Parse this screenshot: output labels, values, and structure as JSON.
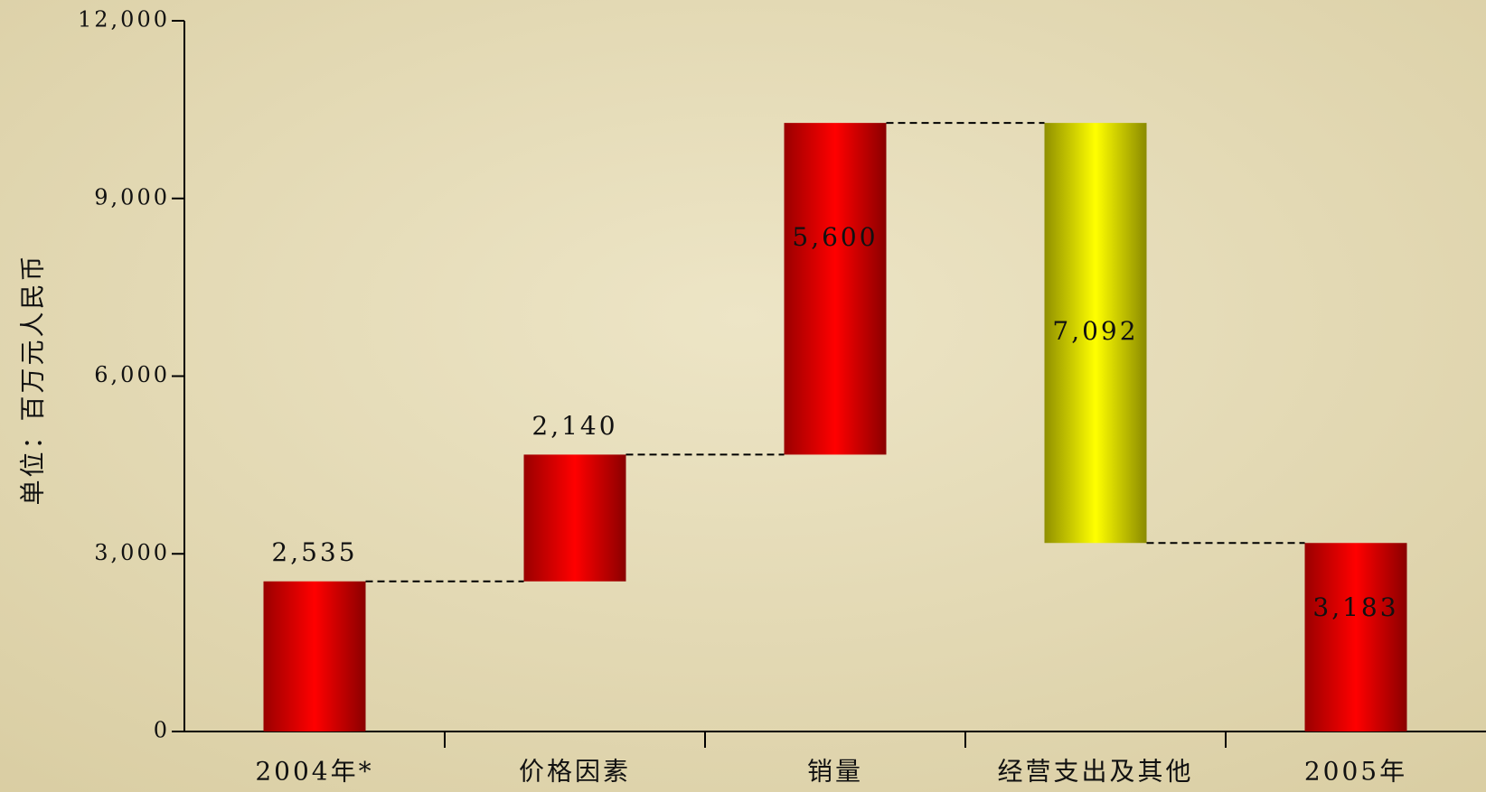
{
  "chart_data": {
    "type": "waterfall",
    "y_label": "单位：百万元人民币",
    "categories": [
      "2004年*",
      "价格因素",
      "销量",
      "经营支出及其他",
      "2005年"
    ],
    "measures": [
      "absolute",
      "relative",
      "relative",
      "relative",
      "total"
    ],
    "values": [
      2535,
      2140,
      5600,
      -7092,
      3183
    ],
    "value_labels": [
      "2,535",
      "2,140",
      "5,600",
      "7,092",
      "3,183"
    ],
    "increase_color": "#ff0000",
    "decrease_color": "#ffff00",
    "ylim": [
      0,
      12000
    ],
    "yticks": [
      0,
      {
        "value": 3000,
        "label": "3,000"
      },
      {
        "value": 6000,
        "label": "6,000"
      },
      {
        "value": 9000,
        "label": "9,000"
      },
      {
        "value": 12000,
        "label": "12,000"
      }
    ]
  }
}
